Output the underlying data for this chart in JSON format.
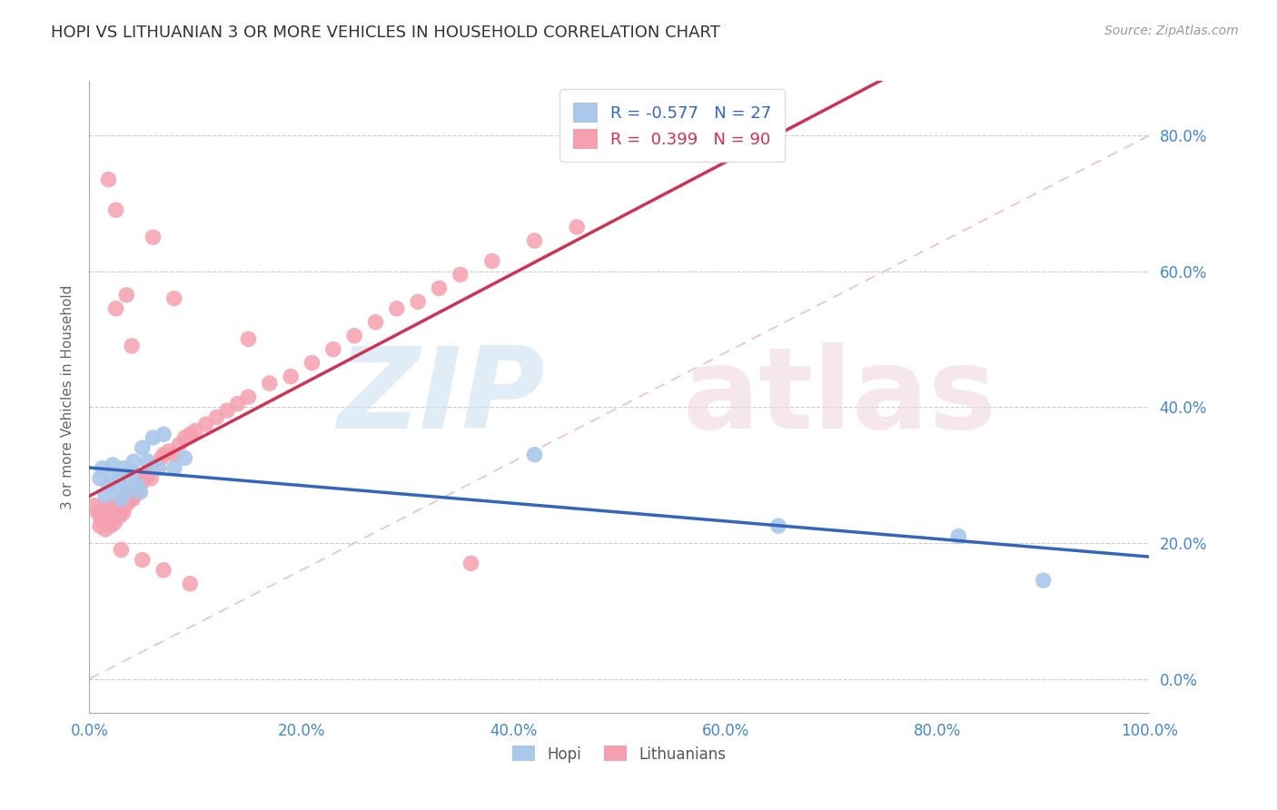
{
  "title": "HOPI VS LITHUANIAN 3 OR MORE VEHICLES IN HOUSEHOLD CORRELATION CHART",
  "source_text": "Source: ZipAtlas.com",
  "ylabel": "3 or more Vehicles in Household",
  "xlim": [
    0.0,
    1.0
  ],
  "ylim": [
    -0.05,
    0.88
  ],
  "xticks": [
    0.0,
    0.2,
    0.4,
    0.6,
    0.8,
    1.0
  ],
  "yticks": [
    0.0,
    0.2,
    0.4,
    0.6,
    0.8
  ],
  "xticklabels": [
    "0.0%",
    "20.0%",
    "40.0%",
    "60.0%",
    "80.0%",
    "100.0%"
  ],
  "yticklabels": [
    "0.0%",
    "20.0%",
    "40.0%",
    "60.0%",
    "80.0%"
  ],
  "hopi_R": -0.577,
  "hopi_N": 27,
  "lith_R": 0.399,
  "lith_N": 90,
  "hopi_color": "#aac8ea",
  "hopi_line_color": "#3366bb",
  "lith_color": "#f5a0b0",
  "lith_line_color": "#cc3355",
  "diag_color": "#e8b8c0",
  "grid_color": "#cccccc",
  "background_color": "#ffffff",
  "axis_tick_color": "#4488cc",
  "axis_label_color": "#666666",
  "title_color": "#333333",
  "source_color": "#999999",
  "hopi_x": [
    0.01,
    0.012,
    0.015,
    0.018,
    0.02,
    0.022,
    0.025,
    0.028,
    0.03,
    0.032,
    0.035,
    0.038,
    0.04,
    0.042,
    0.045,
    0.048,
    0.05,
    0.055,
    0.06,
    0.065,
    0.07,
    0.08,
    0.09,
    0.42,
    0.65,
    0.82,
    0.9
  ],
  "hopi_y": [
    0.295,
    0.31,
    0.27,
    0.285,
    0.3,
    0.315,
    0.28,
    0.295,
    0.265,
    0.31,
    0.275,
    0.29,
    0.305,
    0.32,
    0.285,
    0.275,
    0.34,
    0.32,
    0.355,
    0.31,
    0.36,
    0.31,
    0.325,
    0.33,
    0.225,
    0.21,
    0.145
  ],
  "lith_x": [
    0.005,
    0.008,
    0.01,
    0.01,
    0.012,
    0.013,
    0.014,
    0.015,
    0.015,
    0.016,
    0.017,
    0.018,
    0.019,
    0.02,
    0.02,
    0.021,
    0.022,
    0.023,
    0.024,
    0.025,
    0.026,
    0.027,
    0.028,
    0.029,
    0.03,
    0.03,
    0.031,
    0.032,
    0.033,
    0.034,
    0.035,
    0.036,
    0.037,
    0.038,
    0.039,
    0.04,
    0.041,
    0.042,
    0.043,
    0.044,
    0.045,
    0.046,
    0.047,
    0.048,
    0.05,
    0.052,
    0.055,
    0.058,
    0.06,
    0.062,
    0.065,
    0.068,
    0.07,
    0.075,
    0.08,
    0.085,
    0.09,
    0.095,
    0.1,
    0.11,
    0.12,
    0.13,
    0.14,
    0.15,
    0.17,
    0.19,
    0.21,
    0.23,
    0.25,
    0.27,
    0.29,
    0.31,
    0.33,
    0.35,
    0.38,
    0.42,
    0.46,
    0.36,
    0.15,
    0.08,
    0.06,
    0.04,
    0.025,
    0.018,
    0.03,
    0.05,
    0.07,
    0.095,
    0.025,
    0.035
  ],
  "lith_y": [
    0.255,
    0.245,
    0.225,
    0.24,
    0.23,
    0.25,
    0.235,
    0.22,
    0.25,
    0.24,
    0.245,
    0.235,
    0.25,
    0.225,
    0.24,
    0.255,
    0.235,
    0.245,
    0.23,
    0.24,
    0.255,
    0.245,
    0.26,
    0.24,
    0.25,
    0.265,
    0.255,
    0.245,
    0.26,
    0.255,
    0.265,
    0.275,
    0.26,
    0.265,
    0.27,
    0.275,
    0.265,
    0.28,
    0.27,
    0.285,
    0.28,
    0.275,
    0.29,
    0.285,
    0.29,
    0.295,
    0.3,
    0.295,
    0.31,
    0.315,
    0.31,
    0.325,
    0.33,
    0.335,
    0.33,
    0.345,
    0.355,
    0.36,
    0.365,
    0.375,
    0.385,
    0.395,
    0.405,
    0.415,
    0.435,
    0.445,
    0.465,
    0.485,
    0.505,
    0.525,
    0.545,
    0.555,
    0.575,
    0.595,
    0.615,
    0.645,
    0.665,
    0.17,
    0.5,
    0.56,
    0.65,
    0.49,
    0.69,
    0.735,
    0.19,
    0.175,
    0.16,
    0.14,
    0.545,
    0.565
  ]
}
